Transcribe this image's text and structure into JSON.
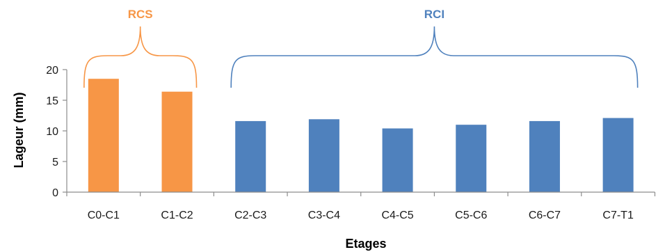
{
  "chart_data": {
    "type": "bar",
    "categories": [
      "C0-C1",
      "C1-C2",
      "C2-C3",
      "C3-C4",
      "C4-C5",
      "C5-C6",
      "C6-C7",
      "C7-T1"
    ],
    "values": [
      18.5,
      16.4,
      11.6,
      11.9,
      10.4,
      11.0,
      11.6,
      12.1
    ],
    "bar_colors": [
      "#f79646",
      "#f79646",
      "#4f81bd",
      "#4f81bd",
      "#4f81bd",
      "#4f81bd",
      "#4f81bd",
      "#4f81bd"
    ],
    "xlabel": "Etages",
    "ylabel": "Lageur (mm)",
    "ylim": [
      0,
      20
    ],
    "yticks": [
      "0",
      "5",
      "10",
      "15",
      "20"
    ],
    "grid": false,
    "annotations": [
      {
        "text": "RCS",
        "color": "#f79646",
        "span": [
          "C0-C1",
          "C1-C2"
        ]
      },
      {
        "text": "RCI",
        "color": "#4f81bd",
        "span": [
          "C2-C3",
          "C7-T1"
        ]
      }
    ]
  }
}
